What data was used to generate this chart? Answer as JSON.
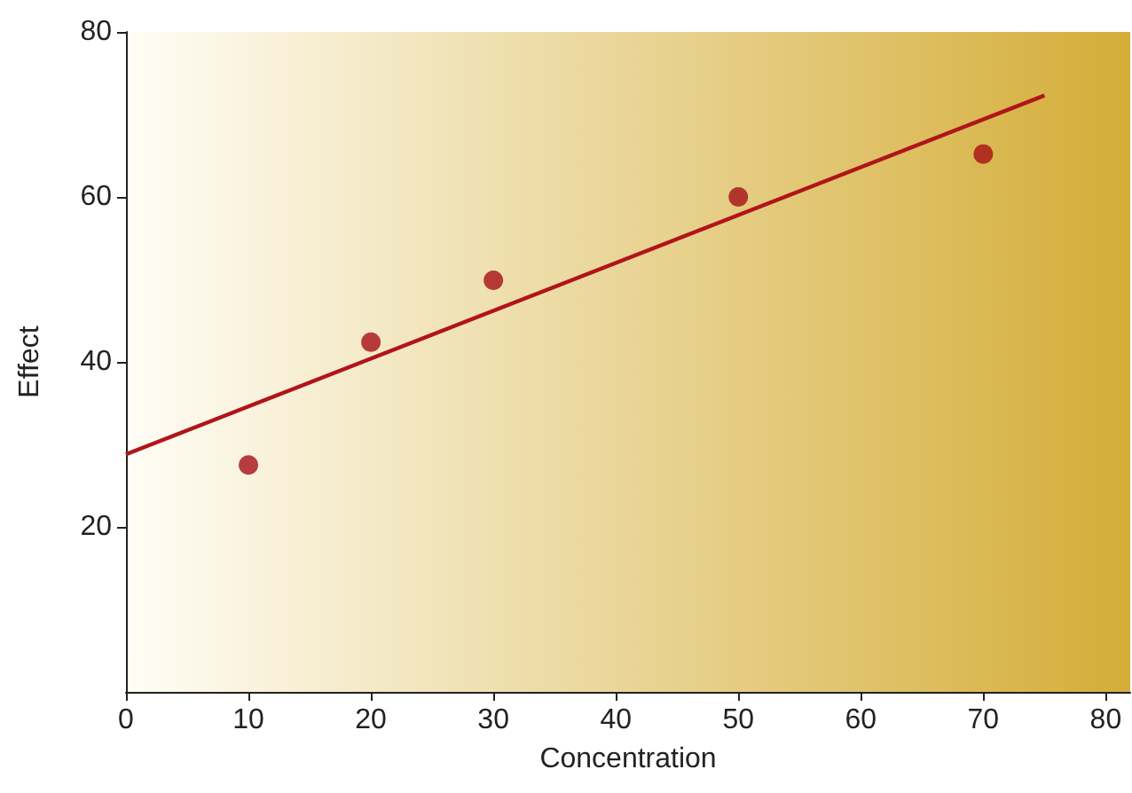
{
  "chart_data": {
    "type": "scatter",
    "xlabel": "Concentration",
    "ylabel": "Effect",
    "xlim": [
      0,
      82
    ],
    "xticks": [
      0,
      10,
      20,
      30,
      40,
      50,
      60,
      70,
      80
    ],
    "ylim": [
      0,
      80
    ],
    "yticks": [
      20,
      40,
      60,
      80
    ],
    "grid": false,
    "marker": "circle",
    "series": [
      {
        "color": "#a50f15",
        "x": [
          10,
          20,
          30,
          50,
          70
        ],
        "values": [
          27.5,
          42.4,
          49.9,
          60,
          65.2
        ]
      },
      {
        "type": "line",
        "color": "#b0151a",
        "line_style": "solid",
        "marker": "none",
        "x": [
          0,
          75
        ],
        "values": [
          28.8,
          72.3
        ]
      }
    ]
  }
}
